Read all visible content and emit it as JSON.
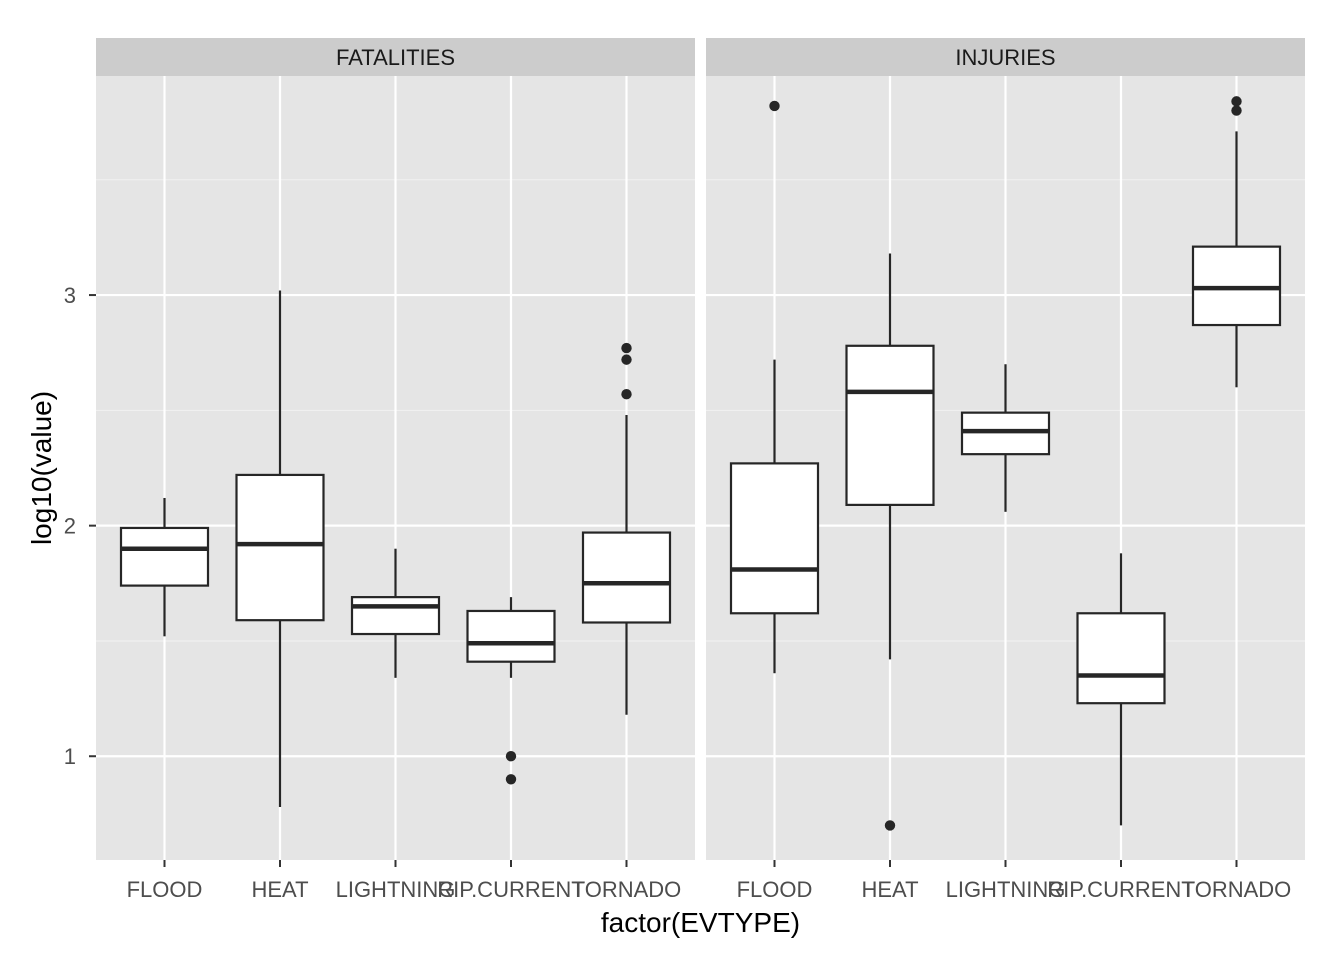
{
  "chart_data": {
    "type": "boxplot",
    "xlabel": "factor(EVTYPE)",
    "ylabel": "log10(value)",
    "ylim": [
      0.55,
      3.95
    ],
    "yticks": [
      1,
      2,
      3
    ],
    "grid": true,
    "categories": [
      "FLOOD",
      "HEAT",
      "LIGHTNING",
      "RIP.CURRENT",
      "TORNADO"
    ],
    "panels": [
      {
        "name": "FATALITIES",
        "boxes": [
          {
            "category": "FLOOD",
            "whisker_low": 1.52,
            "q1": 1.74,
            "median": 1.9,
            "q3": 1.99,
            "whisker_high": 2.12,
            "outliers": []
          },
          {
            "category": "HEAT",
            "whisker_low": 0.78,
            "q1": 1.59,
            "median": 1.92,
            "q3": 2.22,
            "whisker_high": 3.02,
            "outliers": []
          },
          {
            "category": "LIGHTNING",
            "whisker_low": 1.34,
            "q1": 1.53,
            "median": 1.65,
            "q3": 1.69,
            "whisker_high": 1.9,
            "outliers": []
          },
          {
            "category": "RIP.CURRENT",
            "whisker_low": 1.34,
            "q1": 1.41,
            "median": 1.49,
            "q3": 1.63,
            "whisker_high": 1.69,
            "outliers": [
              1.0,
              0.9
            ]
          },
          {
            "category": "TORNADO",
            "whisker_low": 1.18,
            "q1": 1.58,
            "median": 1.75,
            "q3": 1.97,
            "whisker_high": 2.48,
            "outliers": [
              2.57,
              2.72,
              2.77
            ]
          }
        ]
      },
      {
        "name": "INJURIES",
        "boxes": [
          {
            "category": "FLOOD",
            "whisker_low": 1.36,
            "q1": 1.62,
            "median": 1.81,
            "q3": 2.27,
            "whisker_high": 2.72,
            "outliers": [
              3.82
            ]
          },
          {
            "category": "HEAT",
            "whisker_low": 1.42,
            "q1": 2.09,
            "median": 2.58,
            "q3": 2.78,
            "whisker_high": 3.18,
            "outliers": [
              0.7
            ]
          },
          {
            "category": "LIGHTNING",
            "whisker_low": 2.06,
            "q1": 2.31,
            "median": 2.41,
            "q3": 2.49,
            "whisker_high": 2.7,
            "outliers": []
          },
          {
            "category": "RIP.CURRENT",
            "whisker_low": 0.7,
            "q1": 1.23,
            "median": 1.35,
            "q3": 1.62,
            "whisker_high": 1.88,
            "outliers": []
          },
          {
            "category": "TORNADO",
            "whisker_low": 2.6,
            "q1": 2.87,
            "median": 3.03,
            "q3": 3.21,
            "whisker_high": 3.71,
            "outliers": [
              3.8,
              3.84
            ]
          }
        ]
      }
    ]
  }
}
